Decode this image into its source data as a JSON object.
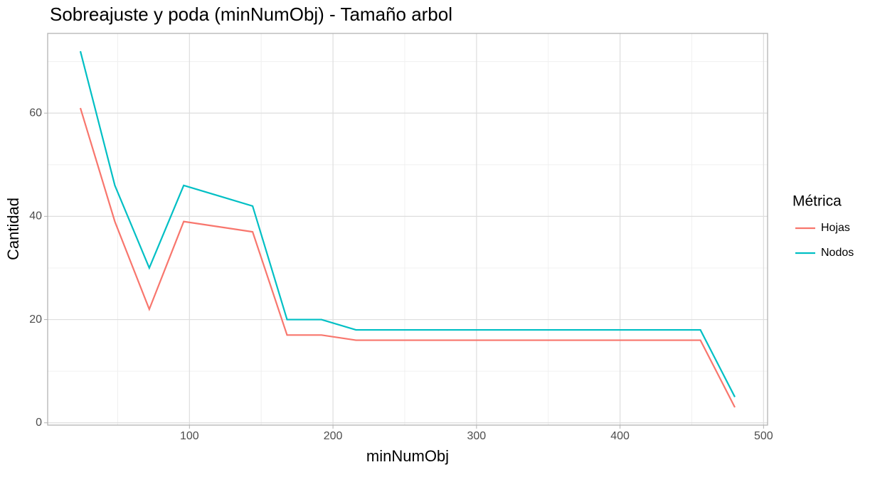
{
  "chart_data": {
    "type": "line",
    "title": "Sobreajuste y poda (minNumObj) - Tamaño arbol",
    "x_label": "minNumObj",
    "y_label": "Cantidad",
    "legend_title": "Métrica",
    "legend_position": "right",
    "x": [
      24,
      48,
      72,
      96,
      120,
      144,
      168,
      192,
      216,
      240,
      264,
      288,
      312,
      336,
      360,
      384,
      408,
      432,
      456,
      480
    ],
    "series": [
      {
        "name": "Hojas",
        "color": "#F8766D",
        "values": [
          61,
          39,
          22,
          39,
          38,
          37,
          17,
          17,
          16,
          16,
          16,
          16,
          16,
          16,
          16,
          16,
          16,
          16,
          16,
          3
        ]
      },
      {
        "name": "Nodos",
        "color": "#00BFC4",
        "values": [
          72,
          46,
          30,
          46,
          44,
          42,
          20,
          20,
          18,
          18,
          18,
          18,
          18,
          18,
          18,
          18,
          18,
          18,
          18,
          5
        ]
      }
    ],
    "xlim": [
      1.2,
      502.8
    ],
    "ylim": [
      -0.45,
      75.45
    ],
    "xticks": [
      100,
      200,
      300,
      400,
      500
    ],
    "yticks": [
      0,
      20,
      40,
      60
    ],
    "x_minor_grid": [
      50,
      150,
      250,
      350,
      450
    ],
    "y_minor_grid": [
      10,
      30,
      50,
      70
    ],
    "grid": true
  }
}
